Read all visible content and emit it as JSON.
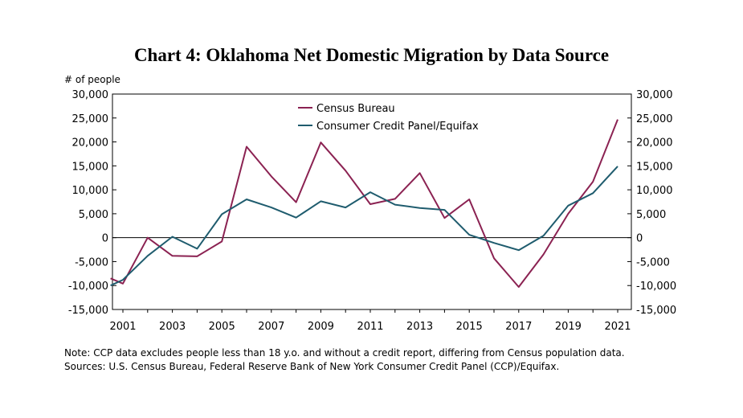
{
  "chart_data": {
    "type": "line",
    "title": "Chart 4: Oklahoma Net Domestic Migration by Data Source",
    "ylabel": "# of people",
    "ylim": [
      -15000,
      30000
    ],
    "xlim": [
      2001,
      2021
    ],
    "y_ticks": [
      "30,000",
      "25,000",
      "20,000",
      "15,000",
      "10,000",
      "5,000",
      "0",
      "-5,000",
      "-10,000",
      "-15,000"
    ],
    "y_tick_values": [
      30000,
      25000,
      20000,
      15000,
      10000,
      5000,
      0,
      -5000,
      -10000,
      -15000
    ],
    "x_ticks": [
      "2001",
      "2003",
      "2005",
      "2007",
      "2009",
      "2011",
      "2013",
      "2015",
      "2017",
      "2019",
      "2021"
    ],
    "x_tick_values": [
      2001,
      2003,
      2005,
      2007,
      2009,
      2011,
      2013,
      2015,
      2017,
      2019,
      2021
    ],
    "legend_position": "top-left-inside",
    "grid": false,
    "series": [
      {
        "name": "Census Bureau",
        "color": "#8b2252",
        "x": [
          2000.5,
          2001,
          2002,
          2003,
          2004,
          2005,
          2006,
          2007,
          2008,
          2009,
          2010,
          2011,
          2012,
          2013,
          2014,
          2015,
          2016,
          2017,
          2018,
          2019,
          2020,
          2021
        ],
        "values": [
          -8500,
          -9600,
          0,
          -3800,
          -3900,
          -800,
          19000,
          12800,
          7400,
          19900,
          14000,
          7000,
          8100,
          13500,
          4100,
          8000,
          -4300,
          -10300,
          -3500,
          5000,
          11700,
          24700
        ]
      },
      {
        "name": "Consumer Credit Panel/Equifax",
        "color": "#1f5c6e",
        "x": [
          2000.5,
          2001,
          2002,
          2003,
          2004,
          2005,
          2006,
          2007,
          2008,
          2009,
          2010,
          2011,
          2012,
          2013,
          2014,
          2015,
          2016,
          2017,
          2018,
          2019,
          2020,
          2021
        ],
        "values": [
          -10000,
          -8800,
          -3800,
          200,
          -2300,
          4900,
          8000,
          6300,
          4200,
          7600,
          6300,
          9500,
          6900,
          6200,
          5800,
          600,
          -1100,
          -2600,
          400,
          6700,
          9300,
          14900
        ]
      }
    ]
  },
  "notes": {
    "note": "Note: CCP data excludes people less than 18 y.o. and without a credit report, differing from Census population data.",
    "sources": "Sources: U.S. Census Bureau, Federal Reserve Bank of New York Consumer Credit Panel (CCP)/Equifax."
  }
}
